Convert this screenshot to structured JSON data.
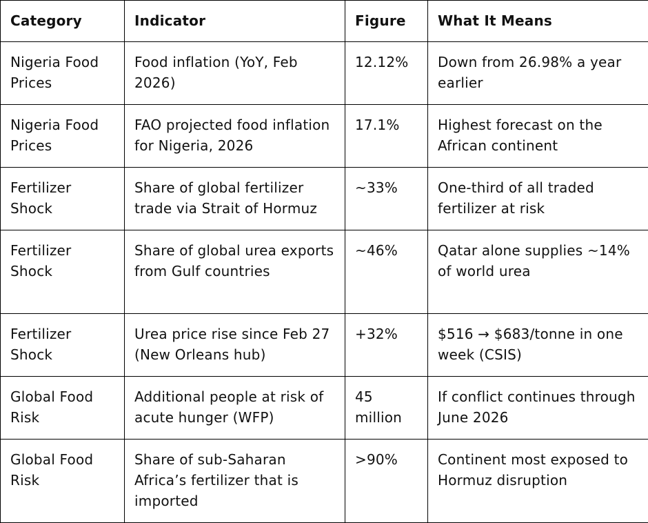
{
  "table": {
    "headers": [
      "Category",
      "Indicator",
      "Figure",
      "What It Means"
    ],
    "rows": [
      {
        "category": "Nigeria Food Prices",
        "indicator": "Food inflation (YoY, Feb 2026)",
        "figure": "12.12%",
        "meaning": "Down from 26.98% a year earlier"
      },
      {
        "category": "Nigeria Food Prices",
        "indicator": "FAO projected food inflation for Nigeria, 2026",
        "figure": "17.1%",
        "meaning": "Highest forecast on the African continent"
      },
      {
        "category": "Fertilizer Shock",
        "indicator": "Share of global fertilizer trade via Strait of Hormuz",
        "figure": "~33%",
        "meaning": "One-third of all traded fertilizer at risk"
      },
      {
        "category": "Fertilizer Shock",
        "indicator": "Share of global urea exports from Gulf countries",
        "figure": "~46%",
        "meaning": "Qatar alone supplies ~14% of world urea"
      },
      {
        "category": "Fertilizer Shock",
        "indicator": "Urea price rise since Feb 27 (New Orleans hub)",
        "figure": "+32%",
        "meaning": "$516 → $683/tonne in one week (CSIS)"
      },
      {
        "category": "Global Food Risk",
        "indicator": "Additional people at risk of acute hunger (WFP)",
        "figure": "45 million",
        "meaning": "If conflict continues through June 2026"
      },
      {
        "category": "Global Food Risk",
        "indicator": "Share of sub-Saharan Africa’s fertilizer that is imported",
        "figure": ">90%",
        "meaning": "Continent most exposed to Hormuz disruption"
      }
    ]
  }
}
